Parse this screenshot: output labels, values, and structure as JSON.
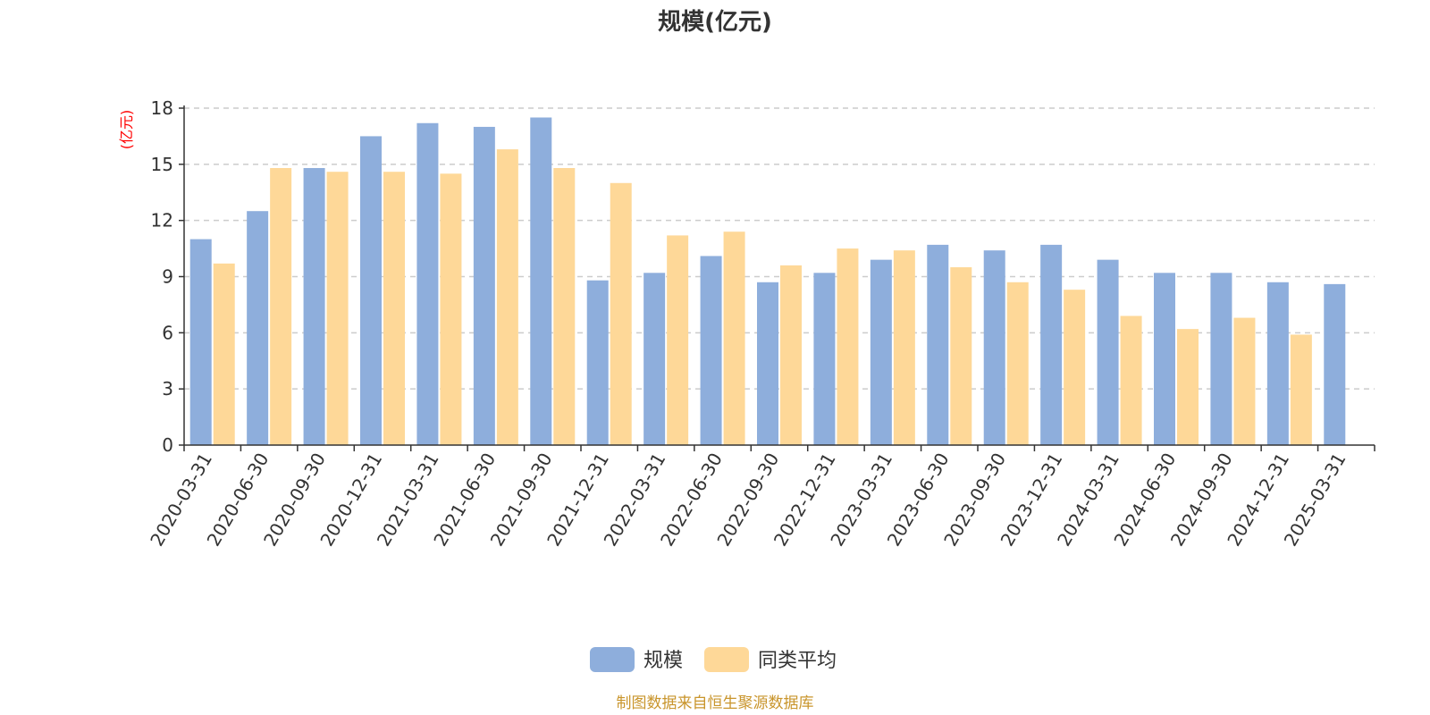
{
  "chart_data": {
    "type": "bar",
    "title": "规模(亿元)",
    "ylabel": "(亿元)",
    "xlabel": "",
    "ylim": [
      0,
      18
    ],
    "yticks": [
      0,
      3,
      6,
      9,
      12,
      15,
      18
    ],
    "grid": true,
    "legend_position": "bottom",
    "categories": [
      "2020-03-31",
      "2020-06-30",
      "2020-09-30",
      "2020-12-31",
      "2021-03-31",
      "2021-06-30",
      "2021-09-30",
      "2021-12-31",
      "2022-03-31",
      "2022-06-30",
      "2022-09-30",
      "2022-12-31",
      "2023-03-31",
      "2023-06-30",
      "2023-09-30",
      "2023-12-31",
      "2024-03-31",
      "2024-06-30",
      "2024-09-30",
      "2024-12-31",
      "2025-03-31"
    ],
    "series": [
      {
        "name": "规模",
        "color": "#8eaedc",
        "values": [
          11.0,
          12.5,
          14.8,
          16.5,
          17.2,
          17.0,
          17.5,
          8.8,
          9.2,
          10.1,
          8.7,
          9.2,
          9.9,
          10.7,
          10.4,
          10.7,
          9.9,
          9.2,
          9.2,
          8.7,
          8.6
        ]
      },
      {
        "name": "同类平均",
        "color": "#fed898",
        "values": [
          9.7,
          14.8,
          14.6,
          14.6,
          14.5,
          15.8,
          14.8,
          14.0,
          11.2,
          11.4,
          9.6,
          10.5,
          10.4,
          9.5,
          8.7,
          8.3,
          6.9,
          6.2,
          6.8,
          5.9,
          null
        ]
      }
    ]
  },
  "unit_color": "#ff0000",
  "source": {
    "text": "制图数据来自恒生聚源数据库",
    "color": "#c9952c"
  }
}
